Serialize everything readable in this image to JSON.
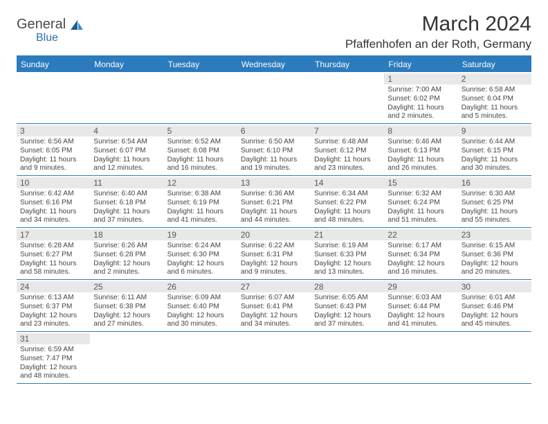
{
  "brand": {
    "word1": "General",
    "word2": "Blue"
  },
  "header": {
    "month_title": "March 2024",
    "location": "Pfaffenhofen an der Roth, Germany"
  },
  "styling": {
    "header_bg": "#2b7bbd",
    "header_text": "#ffffff",
    "daynum_bg": "#e8e8e8",
    "border_color": "#2b7bbd",
    "body_text": "#444444",
    "fontsize_title": 30,
    "fontsize_location": 17,
    "fontsize_dow": 12,
    "fontsize_daynum": 12,
    "fontsize_body": 10.2
  },
  "days_of_week": [
    "Sunday",
    "Monday",
    "Tuesday",
    "Wednesday",
    "Thursday",
    "Friday",
    "Saturday"
  ],
  "weeks": [
    [
      {
        "blank": true
      },
      {
        "blank": true
      },
      {
        "blank": true
      },
      {
        "blank": true
      },
      {
        "blank": true
      },
      {
        "num": "1",
        "sunrise": "Sunrise: 7:00 AM",
        "sunset": "Sunset: 6:02 PM",
        "day1": "Daylight: 11 hours",
        "day2": "and 2 minutes."
      },
      {
        "num": "2",
        "sunrise": "Sunrise: 6:58 AM",
        "sunset": "Sunset: 6:04 PM",
        "day1": "Daylight: 11 hours",
        "day2": "and 5 minutes."
      }
    ],
    [
      {
        "num": "3",
        "sunrise": "Sunrise: 6:56 AM",
        "sunset": "Sunset: 6:05 PM",
        "day1": "Daylight: 11 hours",
        "day2": "and 9 minutes."
      },
      {
        "num": "4",
        "sunrise": "Sunrise: 6:54 AM",
        "sunset": "Sunset: 6:07 PM",
        "day1": "Daylight: 11 hours",
        "day2": "and 12 minutes."
      },
      {
        "num": "5",
        "sunrise": "Sunrise: 6:52 AM",
        "sunset": "Sunset: 6:08 PM",
        "day1": "Daylight: 11 hours",
        "day2": "and 16 minutes."
      },
      {
        "num": "6",
        "sunrise": "Sunrise: 6:50 AM",
        "sunset": "Sunset: 6:10 PM",
        "day1": "Daylight: 11 hours",
        "day2": "and 19 minutes."
      },
      {
        "num": "7",
        "sunrise": "Sunrise: 6:48 AM",
        "sunset": "Sunset: 6:12 PM",
        "day1": "Daylight: 11 hours",
        "day2": "and 23 minutes."
      },
      {
        "num": "8",
        "sunrise": "Sunrise: 6:46 AM",
        "sunset": "Sunset: 6:13 PM",
        "day1": "Daylight: 11 hours",
        "day2": "and 26 minutes."
      },
      {
        "num": "9",
        "sunrise": "Sunrise: 6:44 AM",
        "sunset": "Sunset: 6:15 PM",
        "day1": "Daylight: 11 hours",
        "day2": "and 30 minutes."
      }
    ],
    [
      {
        "num": "10",
        "sunrise": "Sunrise: 6:42 AM",
        "sunset": "Sunset: 6:16 PM",
        "day1": "Daylight: 11 hours",
        "day2": "and 34 minutes."
      },
      {
        "num": "11",
        "sunrise": "Sunrise: 6:40 AM",
        "sunset": "Sunset: 6:18 PM",
        "day1": "Daylight: 11 hours",
        "day2": "and 37 minutes."
      },
      {
        "num": "12",
        "sunrise": "Sunrise: 6:38 AM",
        "sunset": "Sunset: 6:19 PM",
        "day1": "Daylight: 11 hours",
        "day2": "and 41 minutes."
      },
      {
        "num": "13",
        "sunrise": "Sunrise: 6:36 AM",
        "sunset": "Sunset: 6:21 PM",
        "day1": "Daylight: 11 hours",
        "day2": "and 44 minutes."
      },
      {
        "num": "14",
        "sunrise": "Sunrise: 6:34 AM",
        "sunset": "Sunset: 6:22 PM",
        "day1": "Daylight: 11 hours",
        "day2": "and 48 minutes."
      },
      {
        "num": "15",
        "sunrise": "Sunrise: 6:32 AM",
        "sunset": "Sunset: 6:24 PM",
        "day1": "Daylight: 11 hours",
        "day2": "and 51 minutes."
      },
      {
        "num": "16",
        "sunrise": "Sunrise: 6:30 AM",
        "sunset": "Sunset: 6:25 PM",
        "day1": "Daylight: 11 hours",
        "day2": "and 55 minutes."
      }
    ],
    [
      {
        "num": "17",
        "sunrise": "Sunrise: 6:28 AM",
        "sunset": "Sunset: 6:27 PM",
        "day1": "Daylight: 11 hours",
        "day2": "and 58 minutes."
      },
      {
        "num": "18",
        "sunrise": "Sunrise: 6:26 AM",
        "sunset": "Sunset: 6:28 PM",
        "day1": "Daylight: 12 hours",
        "day2": "and 2 minutes."
      },
      {
        "num": "19",
        "sunrise": "Sunrise: 6:24 AM",
        "sunset": "Sunset: 6:30 PM",
        "day1": "Daylight: 12 hours",
        "day2": "and 6 minutes."
      },
      {
        "num": "20",
        "sunrise": "Sunrise: 6:22 AM",
        "sunset": "Sunset: 6:31 PM",
        "day1": "Daylight: 12 hours",
        "day2": "and 9 minutes."
      },
      {
        "num": "21",
        "sunrise": "Sunrise: 6:19 AM",
        "sunset": "Sunset: 6:33 PM",
        "day1": "Daylight: 12 hours",
        "day2": "and 13 minutes."
      },
      {
        "num": "22",
        "sunrise": "Sunrise: 6:17 AM",
        "sunset": "Sunset: 6:34 PM",
        "day1": "Daylight: 12 hours",
        "day2": "and 16 minutes."
      },
      {
        "num": "23",
        "sunrise": "Sunrise: 6:15 AM",
        "sunset": "Sunset: 6:36 PM",
        "day1": "Daylight: 12 hours",
        "day2": "and 20 minutes."
      }
    ],
    [
      {
        "num": "24",
        "sunrise": "Sunrise: 6:13 AM",
        "sunset": "Sunset: 6:37 PM",
        "day1": "Daylight: 12 hours",
        "day2": "and 23 minutes."
      },
      {
        "num": "25",
        "sunrise": "Sunrise: 6:11 AM",
        "sunset": "Sunset: 6:38 PM",
        "day1": "Daylight: 12 hours",
        "day2": "and 27 minutes."
      },
      {
        "num": "26",
        "sunrise": "Sunrise: 6:09 AM",
        "sunset": "Sunset: 6:40 PM",
        "day1": "Daylight: 12 hours",
        "day2": "and 30 minutes."
      },
      {
        "num": "27",
        "sunrise": "Sunrise: 6:07 AM",
        "sunset": "Sunset: 6:41 PM",
        "day1": "Daylight: 12 hours",
        "day2": "and 34 minutes."
      },
      {
        "num": "28",
        "sunrise": "Sunrise: 6:05 AM",
        "sunset": "Sunset: 6:43 PM",
        "day1": "Daylight: 12 hours",
        "day2": "and 37 minutes."
      },
      {
        "num": "29",
        "sunrise": "Sunrise: 6:03 AM",
        "sunset": "Sunset: 6:44 PM",
        "day1": "Daylight: 12 hours",
        "day2": "and 41 minutes."
      },
      {
        "num": "30",
        "sunrise": "Sunrise: 6:01 AM",
        "sunset": "Sunset: 6:46 PM",
        "day1": "Daylight: 12 hours",
        "day2": "and 45 minutes."
      }
    ],
    [
      {
        "num": "31",
        "sunrise": "Sunrise: 6:59 AM",
        "sunset": "Sunset: 7:47 PM",
        "day1": "Daylight: 12 hours",
        "day2": "and 48 minutes."
      },
      {
        "blank": true
      },
      {
        "blank": true
      },
      {
        "blank": true
      },
      {
        "blank": true
      },
      {
        "blank": true
      },
      {
        "blank": true
      }
    ]
  ]
}
